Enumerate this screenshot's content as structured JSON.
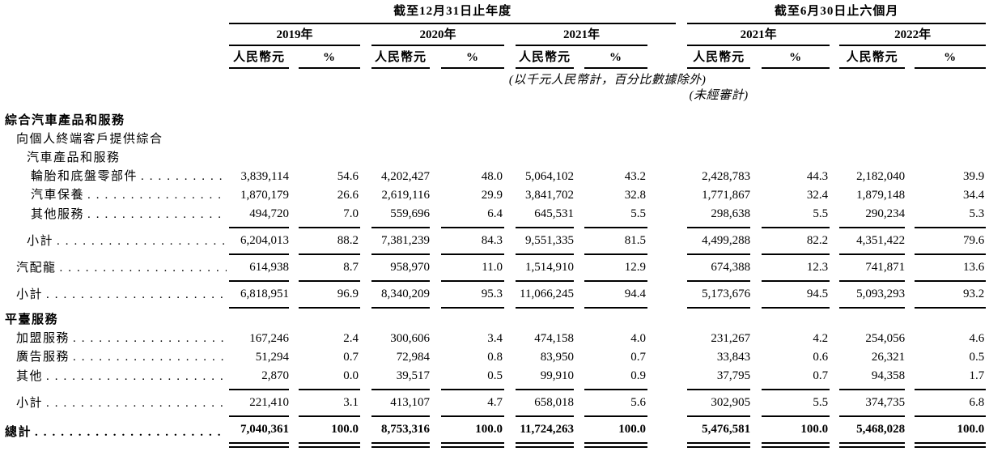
{
  "page": {
    "background": "#ffffff",
    "text_color": "#000000",
    "rule_color": "#000000"
  },
  "table": {
    "period_groups": [
      {
        "title": "截至12月31日止年度",
        "years": [
          "2019年",
          "2020年",
          "2021年"
        ]
      },
      {
        "title": "截至6月30日止六個月",
        "years": [
          "2021年",
          "2022年"
        ]
      }
    ],
    "subcolumn_headers": {
      "amount": "人民幣元",
      "percent": "%"
    },
    "notes": {
      "basis": "(以千元人民幣計，百分比數據除外)",
      "unaudited": "(未經審計)"
    },
    "rows": [
      {
        "label": "綜合汽車產品和服務",
        "indent": 0,
        "bold": true
      },
      {
        "label": "向個人終端客戶提供綜合",
        "indent": 1
      },
      {
        "label": "汽車產品和服務",
        "indent": 2
      },
      {
        "label": "輪胎和底盤零部件",
        "indent": 3,
        "leader": true,
        "values": [
          "3,839,114",
          "54.6",
          "4,202,427",
          "48.0",
          "5,064,102",
          "43.2",
          "2,428,783",
          "44.3",
          "2,182,040",
          "39.9"
        ]
      },
      {
        "label": "汽車保養",
        "indent": 3,
        "leader": true,
        "values": [
          "1,870,179",
          "26.6",
          "2,619,116",
          "29.9",
          "3,841,702",
          "32.8",
          "1,771,867",
          "32.4",
          "1,879,148",
          "34.4"
        ]
      },
      {
        "label": "其他服務",
        "indent": 3,
        "leader": true,
        "rule_below": true,
        "values": [
          "494,720",
          "7.0",
          "559,696",
          "6.4",
          "645,531",
          "5.5",
          "298,638",
          "5.5",
          "290,234",
          "5.3"
        ]
      },
      {
        "label": "小計",
        "indent": 2,
        "leader": true,
        "rule_below": true,
        "values": [
          "6,204,013",
          "88.2",
          "7,381,239",
          "84.3",
          "9,551,335",
          "81.5",
          "4,499,288",
          "82.2",
          "4,351,422",
          "79.6"
        ]
      },
      {
        "label": "汽配龍",
        "indent": 1,
        "leader": true,
        "rule_below": true,
        "values": [
          "614,938",
          "8.7",
          "958,970",
          "11.0",
          "1,514,910",
          "12.9",
          "674,388",
          "12.3",
          "741,871",
          "13.6"
        ]
      },
      {
        "label": "小計",
        "indent": 1,
        "leader": true,
        "rule_below": true,
        "values": [
          "6,818,951",
          "96.9",
          "8,340,209",
          "95.3",
          "11,066,245",
          "94.4",
          "5,173,676",
          "94.5",
          "5,093,293",
          "93.2"
        ]
      },
      {
        "label": "平臺服務",
        "indent": 0,
        "bold": true
      },
      {
        "label": "加盟服務",
        "indent": 1,
        "leader": true,
        "values": [
          "167,246",
          "2.4",
          "300,606",
          "3.4",
          "474,158",
          "4.0",
          "231,267",
          "4.2",
          "254,056",
          "4.6"
        ]
      },
      {
        "label": "廣告服務",
        "indent": 1,
        "leader": true,
        "values": [
          "51,294",
          "0.7",
          "72,984",
          "0.8",
          "83,950",
          "0.7",
          "33,843",
          "0.6",
          "26,321",
          "0.5"
        ]
      },
      {
        "label": "其他",
        "indent": 1,
        "leader": true,
        "rule_below": true,
        "values": [
          "2,870",
          "0.0",
          "39,517",
          "0.5",
          "99,910",
          "0.9",
          "37,795",
          "0.7",
          "94,358",
          "1.7"
        ]
      },
      {
        "label": "小計",
        "indent": 1,
        "leader": true,
        "rule_below": true,
        "values": [
          "221,410",
          "3.1",
          "413,107",
          "4.7",
          "658,018",
          "5.6",
          "302,905",
          "5.5",
          "374,735",
          "6.8"
        ]
      },
      {
        "label": "總計",
        "indent": 0,
        "bold": true,
        "leader": true,
        "rule_below": "double",
        "values": [
          "7,040,361",
          "100.0",
          "8,753,316",
          "100.0",
          "11,724,263",
          "100.0",
          "5,476,581",
          "100.0",
          "5,468,028",
          "100.0"
        ]
      }
    ]
  }
}
